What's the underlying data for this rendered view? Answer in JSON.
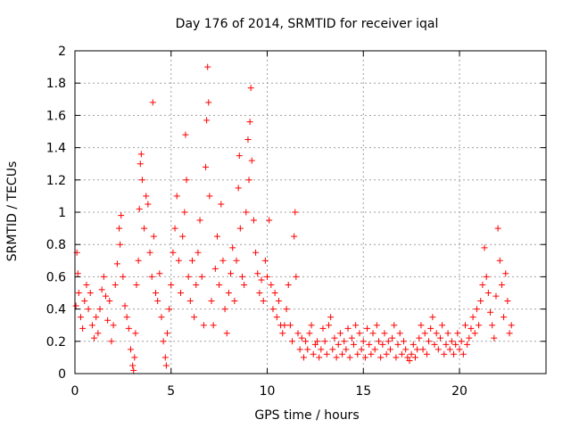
{
  "chart_data": {
    "type": "scatter",
    "title": "Day 176 of 2014, SRMTID for receiver iqal",
    "xlabel": "GPS time / hours",
    "ylabel": "SRMTID / TECUs",
    "xlim": [
      0,
      24.5
    ],
    "ylim": [
      0,
      2
    ],
    "x_ticks": [
      0,
      5,
      10,
      15,
      20
    ],
    "x_tick_labels": [
      "0",
      "5",
      "10",
      "15",
      "20"
    ],
    "y_ticks": [
      0,
      0.2,
      0.4,
      0.6,
      0.8,
      1,
      1.2,
      1.4,
      1.6,
      1.8,
      2
    ],
    "y_tick_labels": [
      "0",
      "0.2",
      "0.4",
      "0.6",
      "0.8",
      "1",
      "1.2",
      "1.4",
      "1.6",
      "1.8",
      "2"
    ],
    "grid": true,
    "marker": "+",
    "color": "#ff0000",
    "series": [
      {
        "name": "SRMTID",
        "points": [
          [
            0.05,
            0.42
          ],
          [
            0.1,
            0.75
          ],
          [
            0.15,
            0.62
          ],
          [
            0.2,
            0.5
          ],
          [
            0.3,
            0.35
          ],
          [
            0.4,
            0.28
          ],
          [
            0.5,
            0.45
          ],
          [
            0.6,
            0.55
          ],
          [
            0.7,
            0.4
          ],
          [
            0.8,
            0.5
          ],
          [
            0.9,
            0.3
          ],
          [
            1.0,
            0.22
          ],
          [
            1.1,
            0.35
          ],
          [
            1.2,
            0.25
          ],
          [
            1.3,
            0.4
          ],
          [
            1.4,
            0.52
          ],
          [
            1.5,
            0.6
          ],
          [
            1.6,
            0.48
          ],
          [
            1.7,
            0.33
          ],
          [
            1.8,
            0.45
          ],
          [
            1.9,
            0.2
          ],
          [
            2.0,
            0.3
          ],
          [
            2.1,
            0.55
          ],
          [
            2.2,
            0.68
          ],
          [
            2.3,
            0.9
          ],
          [
            2.35,
            0.8
          ],
          [
            2.4,
            0.98
          ],
          [
            2.5,
            0.6
          ],
          [
            2.6,
            0.42
          ],
          [
            2.7,
            0.35
          ],
          [
            2.8,
            0.28
          ],
          [
            2.9,
            0.15
          ],
          [
            3.0,
            0.05
          ],
          [
            3.05,
            0.02
          ],
          [
            3.1,
            0.1
          ],
          [
            3.15,
            0.25
          ],
          [
            3.2,
            0.55
          ],
          [
            3.3,
            0.7
          ],
          [
            3.35,
            1.02
          ],
          [
            3.4,
            1.3
          ],
          [
            3.45,
            1.36
          ],
          [
            3.5,
            1.2
          ],
          [
            3.6,
            0.9
          ],
          [
            3.7,
            1.1
          ],
          [
            3.8,
            1.05
          ],
          [
            3.9,
            0.75
          ],
          [
            4.0,
            0.6
          ],
          [
            4.05,
            1.68
          ],
          [
            4.1,
            0.85
          ],
          [
            4.2,
            0.5
          ],
          [
            4.3,
            0.45
          ],
          [
            4.4,
            0.62
          ],
          [
            4.5,
            0.35
          ],
          [
            4.6,
            0.2
          ],
          [
            4.7,
            0.1
          ],
          [
            4.75,
            0.05
          ],
          [
            4.8,
            0.25
          ],
          [
            4.9,
            0.4
          ],
          [
            5.0,
            0.55
          ],
          [
            5.1,
            0.75
          ],
          [
            5.2,
            0.9
          ],
          [
            5.3,
            1.1
          ],
          [
            5.4,
            0.7
          ],
          [
            5.5,
            0.5
          ],
          [
            5.6,
            0.85
          ],
          [
            5.7,
            1.0
          ],
          [
            5.75,
            1.48
          ],
          [
            5.8,
            1.2
          ],
          [
            5.9,
            0.6
          ],
          [
            6.0,
            0.45
          ],
          [
            6.1,
            0.7
          ],
          [
            6.2,
            0.35
          ],
          [
            6.3,
            0.55
          ],
          [
            6.4,
            0.75
          ],
          [
            6.5,
            0.95
          ],
          [
            6.6,
            0.6
          ],
          [
            6.7,
            0.3
          ],
          [
            6.8,
            1.28
          ],
          [
            6.85,
            1.57
          ],
          [
            6.9,
            1.9
          ],
          [
            6.95,
            1.68
          ],
          [
            7.0,
            1.1
          ],
          [
            7.1,
            0.45
          ],
          [
            7.2,
            0.3
          ],
          [
            7.3,
            0.65
          ],
          [
            7.4,
            0.85
          ],
          [
            7.5,
            0.55
          ],
          [
            7.6,
            1.05
          ],
          [
            7.7,
            0.7
          ],
          [
            7.8,
            0.4
          ],
          [
            7.9,
            0.25
          ],
          [
            8.0,
            0.5
          ],
          [
            8.1,
            0.62
          ],
          [
            8.2,
            0.78
          ],
          [
            8.3,
            0.45
          ],
          [
            8.4,
            0.7
          ],
          [
            8.5,
            1.15
          ],
          [
            8.55,
            1.35
          ],
          [
            8.6,
            0.9
          ],
          [
            8.7,
            0.6
          ],
          [
            8.8,
            0.55
          ],
          [
            8.9,
            1.0
          ],
          [
            9.0,
            1.45
          ],
          [
            9.05,
            1.2
          ],
          [
            9.1,
            1.56
          ],
          [
            9.15,
            1.77
          ],
          [
            9.2,
            1.32
          ],
          [
            9.3,
            0.95
          ],
          [
            9.4,
            0.75
          ],
          [
            9.5,
            0.62
          ],
          [
            9.6,
            0.5
          ],
          [
            9.7,
            0.58
          ],
          [
            9.8,
            0.45
          ],
          [
            9.9,
            0.7
          ],
          [
            10.0,
            0.6
          ],
          [
            10.1,
            0.95
          ],
          [
            10.2,
            0.55
          ],
          [
            10.3,
            0.4
          ],
          [
            10.4,
            0.5
          ],
          [
            10.5,
            0.35
          ],
          [
            10.6,
            0.45
          ],
          [
            10.7,
            0.3
          ],
          [
            10.8,
            0.25
          ],
          [
            10.9,
            0.3
          ],
          [
            11.0,
            0.4
          ],
          [
            11.1,
            0.55
          ],
          [
            11.2,
            0.3
          ],
          [
            11.3,
            0.2
          ],
          [
            11.4,
            0.85
          ],
          [
            11.45,
            1.0
          ],
          [
            11.5,
            0.6
          ],
          [
            11.6,
            0.25
          ],
          [
            11.7,
            0.15
          ],
          [
            11.8,
            0.22
          ],
          [
            11.9,
            0.1
          ],
          [
            12.0,
            0.2
          ],
          [
            12.1,
            0.15
          ],
          [
            12.2,
            0.25
          ],
          [
            12.3,
            0.3
          ],
          [
            12.4,
            0.12
          ],
          [
            12.5,
            0.18
          ],
          [
            12.6,
            0.2
          ],
          [
            12.7,
            0.1
          ],
          [
            12.8,
            0.15
          ],
          [
            12.9,
            0.28
          ],
          [
            13.0,
            0.2
          ],
          [
            13.1,
            0.12
          ],
          [
            13.2,
            0.3
          ],
          [
            13.3,
            0.35
          ],
          [
            13.4,
            0.15
          ],
          [
            13.5,
            0.22
          ],
          [
            13.6,
            0.1
          ],
          [
            13.7,
            0.18
          ],
          [
            13.8,
            0.25
          ],
          [
            13.9,
            0.12
          ],
          [
            14.0,
            0.2
          ],
          [
            14.1,
            0.15
          ],
          [
            14.2,
            0.28
          ],
          [
            14.3,
            0.1
          ],
          [
            14.4,
            0.22
          ],
          [
            14.5,
            0.18
          ],
          [
            14.6,
            0.3
          ],
          [
            14.7,
            0.12
          ],
          [
            14.8,
            0.25
          ],
          [
            14.9,
            0.15
          ],
          [
            15.0,
            0.2
          ],
          [
            15.1,
            0.1
          ],
          [
            15.2,
            0.28
          ],
          [
            15.3,
            0.18
          ],
          [
            15.4,
            0.12
          ],
          [
            15.5,
            0.25
          ],
          [
            15.6,
            0.15
          ],
          [
            15.7,
            0.3
          ],
          [
            15.8,
            0.2
          ],
          [
            15.9,
            0.1
          ],
          [
            16.0,
            0.18
          ],
          [
            16.1,
            0.25
          ],
          [
            16.2,
            0.12
          ],
          [
            16.3,
            0.2
          ],
          [
            16.4,
            0.15
          ],
          [
            16.5,
            0.22
          ],
          [
            16.6,
            0.3
          ],
          [
            16.7,
            0.1
          ],
          [
            16.8,
            0.18
          ],
          [
            16.9,
            0.25
          ],
          [
            17.0,
            0.12
          ],
          [
            17.1,
            0.2
          ],
          [
            17.2,
            0.15
          ],
          [
            17.3,
            0.1
          ],
          [
            17.4,
            0.08
          ],
          [
            17.5,
            0.12
          ],
          [
            17.6,
            0.18
          ],
          [
            17.7,
            0.1
          ],
          [
            17.8,
            0.15
          ],
          [
            17.9,
            0.22
          ],
          [
            18.0,
            0.3
          ],
          [
            18.1,
            0.15
          ],
          [
            18.2,
            0.25
          ],
          [
            18.3,
            0.12
          ],
          [
            18.4,
            0.2
          ],
          [
            18.5,
            0.28
          ],
          [
            18.6,
            0.35
          ],
          [
            18.7,
            0.18
          ],
          [
            18.8,
            0.25
          ],
          [
            18.9,
            0.15
          ],
          [
            19.0,
            0.22
          ],
          [
            19.1,
            0.3
          ],
          [
            19.2,
            0.12
          ],
          [
            19.3,
            0.18
          ],
          [
            19.4,
            0.25
          ],
          [
            19.5,
            0.15
          ],
          [
            19.6,
            0.2
          ],
          [
            19.7,
            0.12
          ],
          [
            19.8,
            0.18
          ],
          [
            19.9,
            0.25
          ],
          [
            20.0,
            0.15
          ],
          [
            20.1,
            0.2
          ],
          [
            20.2,
            0.12
          ],
          [
            20.3,
            0.3
          ],
          [
            20.4,
            0.18
          ],
          [
            20.5,
            0.22
          ],
          [
            20.6,
            0.28
          ],
          [
            20.7,
            0.35
          ],
          [
            20.8,
            0.25
          ],
          [
            20.9,
            0.4
          ],
          [
            21.0,
            0.3
          ],
          [
            21.1,
            0.45
          ],
          [
            21.2,
            0.55
          ],
          [
            21.3,
            0.78
          ],
          [
            21.4,
            0.6
          ],
          [
            21.5,
            0.5
          ],
          [
            21.6,
            0.38
          ],
          [
            21.7,
            0.3
          ],
          [
            21.8,
            0.22
          ],
          [
            21.9,
            0.48
          ],
          [
            22.0,
            0.9
          ],
          [
            22.1,
            0.7
          ],
          [
            22.2,
            0.55
          ],
          [
            22.3,
            0.35
          ],
          [
            22.4,
            0.62
          ],
          [
            22.5,
            0.45
          ],
          [
            22.6,
            0.25
          ],
          [
            22.7,
            0.3
          ]
        ]
      }
    ]
  }
}
